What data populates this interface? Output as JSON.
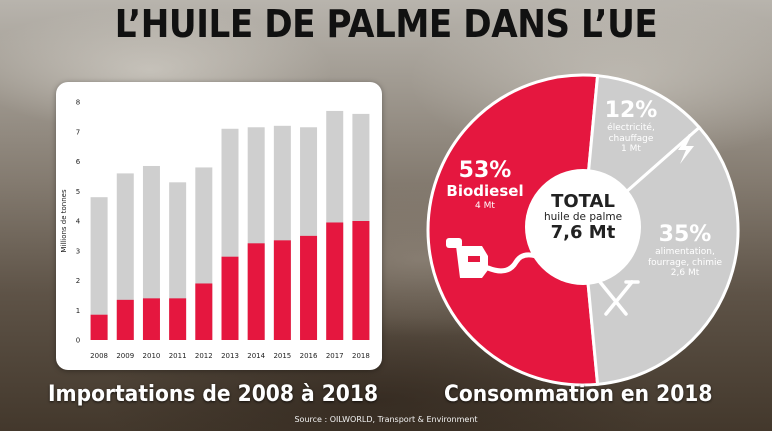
{
  "title": "L’HUILE DE PALME DANS L’UE",
  "bar_caption": "Importations de 2008 à 2018",
  "pie_caption": "Consommation en 2018",
  "source": "Source : OILWORLD, Transport & Environment",
  "colors": {
    "accent": "#e5173f",
    "bar_grey": "#cfcfcf",
    "pie_grey": "#cdcdcd"
  },
  "chart_data": [
    {
      "type": "bar",
      "stacked": true,
      "ylabel": "Millions de tonnes",
      "ylim": [
        0,
        8
      ],
      "yticks": [
        0,
        1,
        2,
        3,
        4,
        5,
        6,
        7,
        8
      ],
      "categories": [
        "2008",
        "2009",
        "2010",
        "2011",
        "2012",
        "2013",
        "2014",
        "2015",
        "2016",
        "2017",
        "2018"
      ],
      "totals": [
        4.8,
        5.6,
        5.85,
        5.3,
        5.8,
        7.1,
        7.15,
        7.2,
        7.15,
        7.7,
        7.6
      ],
      "highlighted": [
        0.85,
        1.35,
        1.4,
        1.4,
        1.9,
        2.8,
        3.25,
        3.35,
        3.5,
        3.95,
        4.0
      ],
      "grid": false,
      "legend": "none"
    },
    {
      "type": "pie",
      "center": {
        "title": "TOTAL",
        "subtitle": "huile de palme",
        "value": "7,6 Mt"
      },
      "slices": [
        {
          "percent": 53,
          "pct_label": "53%",
          "label": "Biodiesel",
          "amount": "4 Mt",
          "color": "#e5173f",
          "icon": "fuel-nozzle-icon"
        },
        {
          "percent": 12,
          "pct_label": "12%",
          "label": "électricité, chauffage",
          "amount": "1 Mt",
          "color": "#cdcdcd",
          "icon": "lightning-icon"
        },
        {
          "percent": 35,
          "pct_label": "35%",
          "label": "alimentation, fourrage, chimie",
          "amount": "2,6 Mt",
          "color": "#cdcdcd",
          "icon": "fork-knife-icon"
        }
      ]
    }
  ]
}
